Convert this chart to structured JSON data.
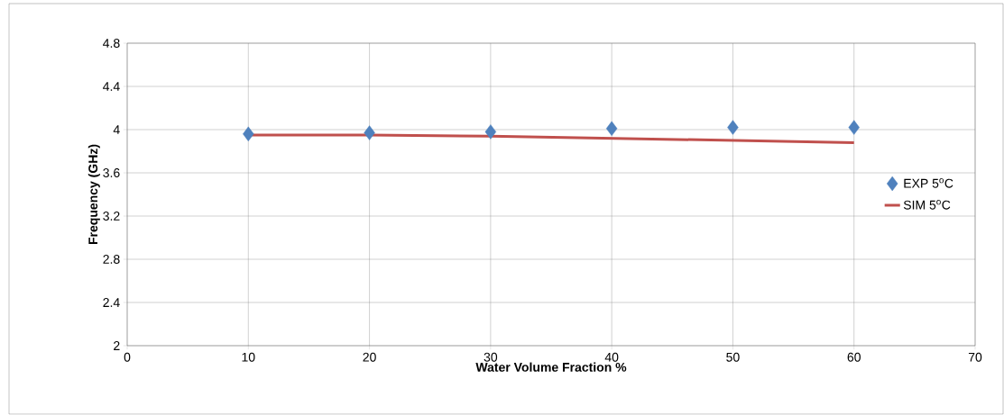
{
  "chart_data": {
    "type": "line",
    "xlabel": "Water Volume Fraction %",
    "ylabel": "Frequency (GHz)",
    "x": [
      10,
      20,
      30,
      40,
      50,
      60
    ],
    "series": [
      {
        "name": "EXP 5$^{o}$C",
        "type": "scatter",
        "color": "#4f81bd",
        "marker": "diamond",
        "values": [
          3.96,
          3.97,
          3.98,
          4.01,
          4.02,
          4.02
        ]
      },
      {
        "name": "SIM 5$^{o}$C",
        "type": "line",
        "color": "#c0504d",
        "marker": "none",
        "line_style": "solid",
        "values": [
          3.95,
          3.95,
          3.94,
          3.92,
          3.9,
          3.88
        ]
      }
    ],
    "xlim": [
      0,
      70
    ],
    "xticks": [
      0,
      10,
      20,
      30,
      40,
      50,
      60,
      70
    ],
    "ylim": [
      2,
      4.8
    ],
    "yticks": [
      2,
      2.4,
      2.8,
      3.2,
      3.6,
      4,
      4.4,
      4.8
    ],
    "grid": true,
    "legend": "right"
  }
}
